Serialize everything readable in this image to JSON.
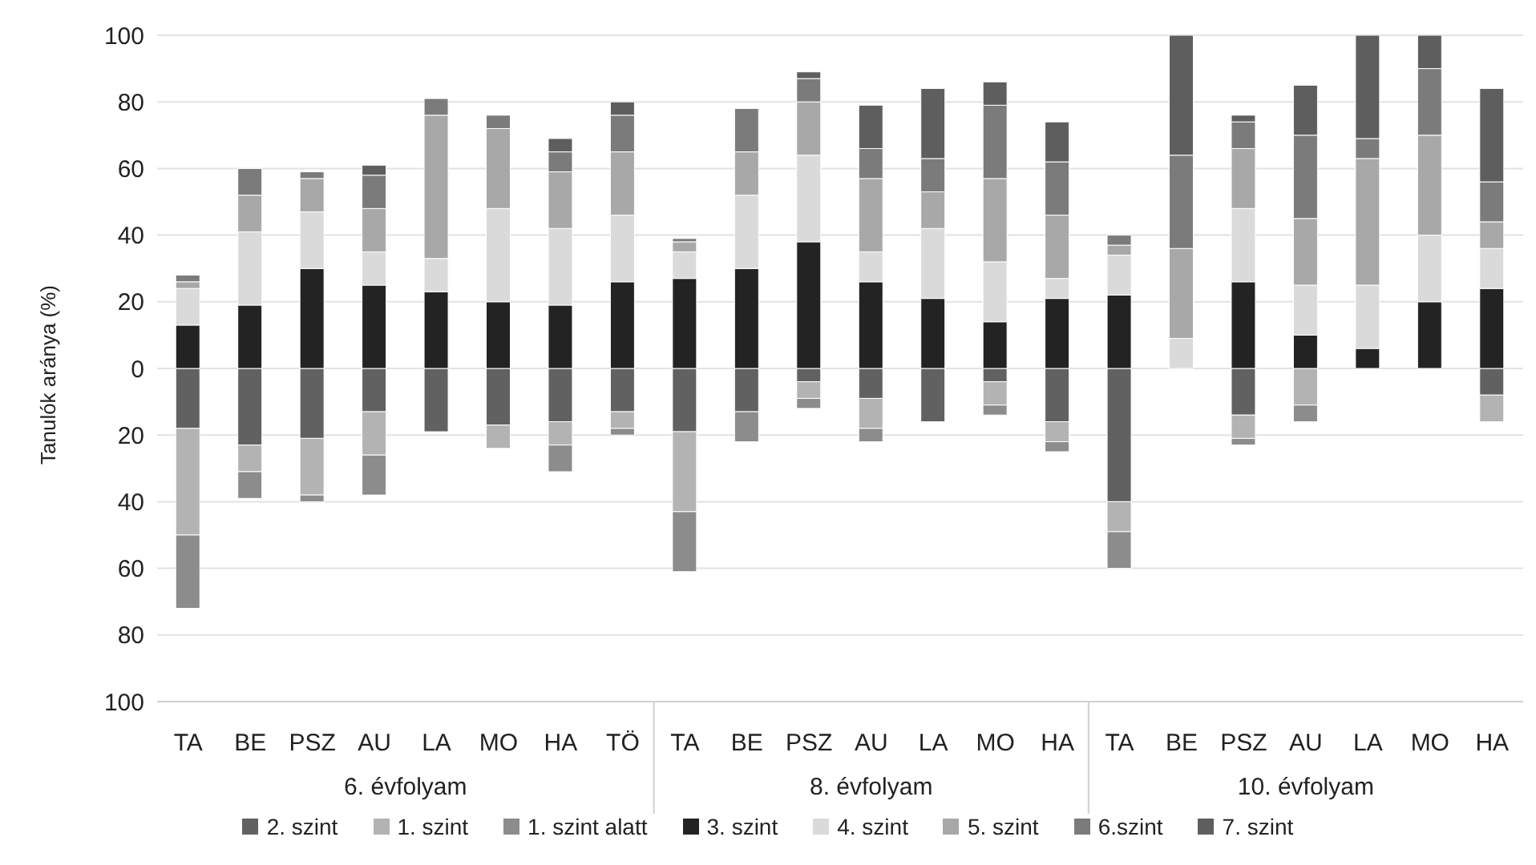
{
  "chart_data": {
    "type": "bar",
    "stacked": true,
    "ylabel": "Tanulók aránya (%)",
    "categories": [
      "TA",
      "BE",
      "PSZ",
      "AU",
      "LA",
      "MO",
      "HA",
      "TÖ",
      "TA",
      "BE",
      "PSZ",
      "AU",
      "LA",
      "MO",
      "HA",
      "TA",
      "BE",
      "PSZ",
      "AU",
      "LA",
      "MO",
      "HA"
    ],
    "series": [
      {
        "name": "2. szint",
        "color": "#616161",
        "values": [
          -18,
          -23,
          -21,
          -13,
          -19,
          -17,
          -16,
          -13,
          -19,
          -13,
          -4,
          -9,
          -16,
          -4,
          -16,
          -40,
          null,
          -14,
          null,
          null,
          null,
          -8
        ]
      },
      {
        "name": "1. szint",
        "color": "#b3b3b3",
        "values": [
          -32,
          -8,
          -17,
          -13,
          null,
          -7,
          -7,
          -5,
          -24,
          null,
          -5,
          -9,
          null,
          -7,
          -6,
          -9,
          null,
          -7,
          -11,
          null,
          null,
          -8
        ]
      },
      {
        "name": "1. szint alatt",
        "color": "#8c8c8c",
        "values": [
          -22,
          -8,
          -2,
          -12,
          null,
          null,
          -8,
          -2,
          -18,
          -9,
          -3,
          -4,
          null,
          -3,
          -3,
          -11,
          null,
          -2,
          -5,
          null,
          null,
          null
        ]
      },
      {
        "name": "3. szint",
        "color": "#232323",
        "values": [
          13,
          19,
          30,
          25,
          23,
          20,
          19,
          26,
          27,
          30,
          38,
          26,
          21,
          14,
          21,
          22,
          null,
          26,
          10,
          6,
          20,
          24
        ]
      },
      {
        "name": "4. szint",
        "color": "#dadada",
        "values": [
          11,
          22,
          17,
          10,
          10,
          28,
          23,
          20,
          8,
          22,
          26,
          9,
          21,
          18,
          6,
          12,
          9,
          22,
          15,
          19,
          20,
          12
        ]
      },
      {
        "name": "5. szint",
        "color": "#a8a8a8",
        "values": [
          2,
          11,
          10,
          13,
          43,
          24,
          17,
          19,
          3,
          13,
          16,
          22,
          11,
          25,
          19,
          3,
          27,
          18,
          20,
          38,
          30,
          8
        ]
      },
      {
        "name": "6.szint",
        "color": "#7b7b7b",
        "values": [
          2,
          8,
          2,
          10,
          5,
          4,
          6,
          11,
          1,
          13,
          7,
          9,
          10,
          22,
          16,
          3,
          28,
          8,
          25,
          6,
          20,
          12
        ]
      },
      {
        "name": "7. szint",
        "color": "#5e5e5e",
        "values": [
          null,
          null,
          null,
          3,
          null,
          null,
          4,
          4,
          null,
          null,
          2,
          13,
          21,
          7,
          12,
          null,
          36,
          2,
          15,
          31,
          10,
          28
        ]
      }
    ],
    "ylim": [
      -100,
      100
    ],
    "yticks": [
      {
        "value": -100,
        "label": "100"
      },
      {
        "value": -80,
        "label": "80"
      },
      {
        "value": -60,
        "label": "60"
      },
      {
        "value": -40,
        "label": "40"
      },
      {
        "value": -20,
        "label": "20"
      },
      0,
      20,
      40,
      60,
      80,
      100
    ],
    "grid": "y",
    "legend": "bottom",
    "annotations": [
      "6. évfolyam",
      "8. évfolyam",
      "10. évfolyam"
    ]
  }
}
